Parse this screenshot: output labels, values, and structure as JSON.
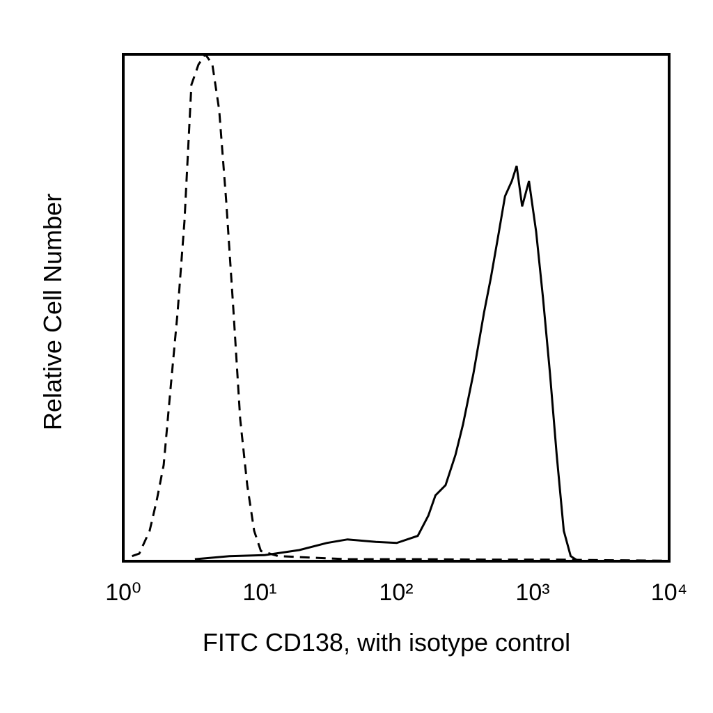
{
  "chart_data": {
    "type": "line",
    "x_label": "FITC CD138, with isotype control",
    "y_label": "Relative Cell Number",
    "xscale": "log",
    "xlim": [
      1,
      10000
    ],
    "ylim": [
      0,
      100
    ],
    "xticks": [
      {
        "value": 1,
        "label": "10⁰"
      },
      {
        "value": 10,
        "label": "10¹"
      },
      {
        "value": 100,
        "label": "10²"
      },
      {
        "value": 1000,
        "label": "10³"
      },
      {
        "value": 10000,
        "label": "10⁴"
      }
    ],
    "grid": false,
    "series": [
      {
        "color": "#000000",
        "style": "dashed",
        "x": [
          1.16,
          1.31,
          1.56,
          1.76,
          1.98,
          2.22,
          2.5,
          2.81,
          3.16,
          3.56,
          4.0,
          4.5,
          5.05,
          5.68,
          6.4,
          7.2,
          8.1,
          9.1,
          10.2,
          13.7,
          44,
          144,
          465,
          1500,
          9800
        ],
        "values": [
          1,
          1.5,
          6,
          12,
          19,
          34,
          49,
          67,
          94,
          98,
          100,
          98,
          89,
          71,
          50,
          28,
          15,
          6,
          2,
          1,
          0.4,
          0.4,
          0.3,
          0.3,
          0.1
        ]
      },
      {
        "color": "#000000",
        "style": "solid",
        "x": [
          3.35,
          6,
          10.8,
          19.5,
          31,
          44,
          71,
          101,
          144,
          172,
          194,
          230,
          272,
          309,
          368,
          440,
          495,
          558,
          627,
          704,
          763,
          837,
          940,
          1060,
          1190,
          1340,
          1500,
          1690,
          1900,
          2140
        ],
        "values": [
          0.4,
          1,
          1.2,
          2.2,
          3.6,
          4.3,
          3.8,
          3.6,
          5,
          9,
          13,
          15,
          21,
          27,
          37,
          49,
          56,
          64,
          72,
          75,
          78,
          70,
          75,
          65,
          52,
          37,
          21,
          6,
          1,
          0.1
        ]
      }
    ]
  }
}
